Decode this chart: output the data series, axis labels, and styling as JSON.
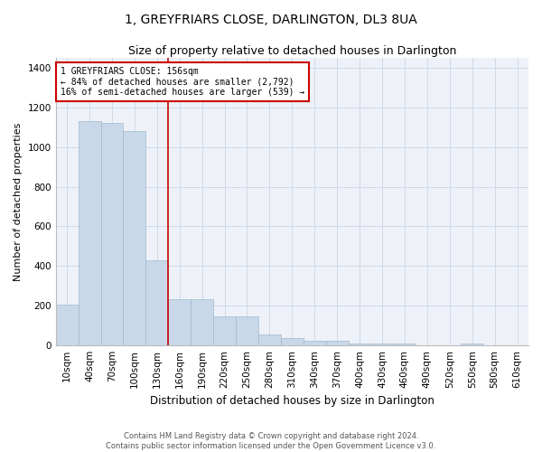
{
  "title": "1, GREYFRIARS CLOSE, DARLINGTON, DL3 8UA",
  "subtitle": "Size of property relative to detached houses in Darlington",
  "xlabel": "Distribution of detached houses by size in Darlington",
  "ylabel": "Number of detached properties",
  "footer_line1": "Contains HM Land Registry data © Crown copyright and database right 2024.",
  "footer_line2": "Contains public sector information licensed under the Open Government Licence v3.0.",
  "bar_color": "#c8d8e8",
  "bar_edge_color": "#a0b8d0",
  "grid_color": "#d0d8e8",
  "bg_color": "#eef2f8",
  "annotation_box_color": "#cc0000",
  "vline_color": "#cc0000",
  "categories": [
    "10sqm",
    "40sqm",
    "70sqm",
    "100sqm",
    "130sqm",
    "160sqm",
    "190sqm",
    "220sqm",
    "250sqm",
    "280sqm",
    "310sqm",
    "340sqm",
    "370sqm",
    "400sqm",
    "430sqm",
    "460sqm",
    "490sqm",
    "520sqm",
    "550sqm",
    "580sqm",
    "610sqm"
  ],
  "values": [
    205,
    1130,
    1120,
    1080,
    430,
    230,
    230,
    145,
    145,
    55,
    35,
    20,
    20,
    10,
    10,
    10,
    0,
    0,
    10,
    0,
    0
  ],
  "annotation_line1": "1 GREYFRIARS CLOSE: 156sqm",
  "annotation_line2": "← 84% of detached houses are smaller (2,792)",
  "annotation_line3": "16% of semi-detached houses are larger (539) →",
  "vline_position": 4.5,
  "ylim": [
    0,
    1450
  ],
  "yticks": [
    0,
    200,
    400,
    600,
    800,
    1000,
    1200,
    1400
  ],
  "title_fontsize": 10,
  "subtitle_fontsize": 9,
  "xlabel_fontsize": 8.5,
  "ylabel_fontsize": 8,
  "tick_fontsize": 7.5,
  "annotation_fontsize": 7,
  "footer_fontsize": 6
}
